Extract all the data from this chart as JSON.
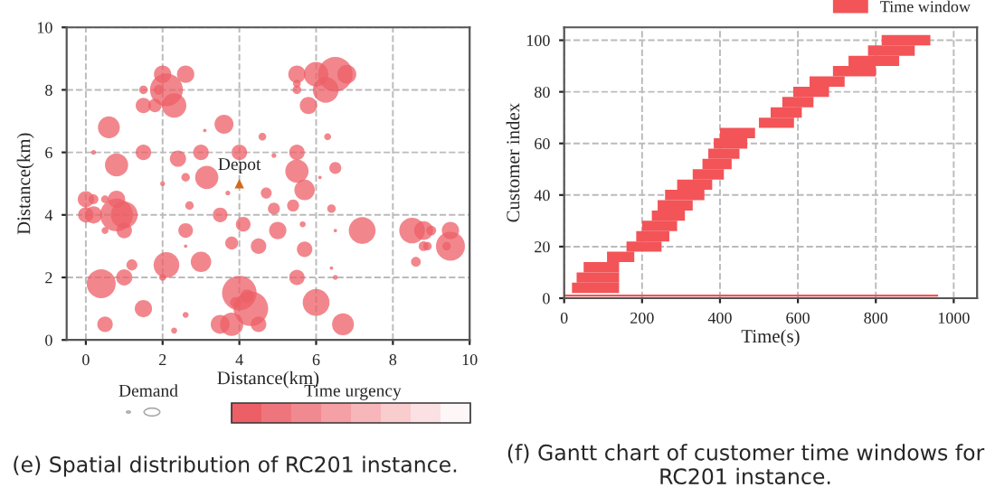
{
  "chart_data": [
    {
      "type": "bubble",
      "xlabel": "Distance(km)",
      "ylabel": "Distance(km)",
      "xlim": [
        -0.5,
        10
      ],
      "xticks": [
        0,
        2,
        4,
        6,
        8,
        10
      ],
      "ylim": [
        0,
        10
      ],
      "yticks": [
        0,
        2,
        4,
        6,
        8,
        10
      ],
      "grid": true,
      "line_style": "dashed",
      "series": [
        {
          "type": "bubble",
          "color": "#ec5f67",
          "x": [
            2.1,
            2.0,
            2.3,
            1.5,
            1.8,
            2.6,
            1.5,
            1.9,
            0.6,
            3.6,
            1.5,
            0.8,
            2.4,
            3.0,
            3.15,
            0.2,
            2.0,
            2.6,
            3.1,
            4.0,
            4.6,
            4.9,
            4.7,
            4.9,
            5.4,
            5.5,
            5.5,
            5.7,
            6.3,
            6.5,
            6.1,
            6.4,
            3.7,
            5.5,
            5.5,
            5.8,
            6.0,
            6.25,
            6.5,
            6.8,
            5.5,
            0,
            0.2,
            0.5,
            0,
            0.2,
            0.8,
            0.8,
            1.0,
            1.0,
            0.5,
            2.7,
            2.6,
            3.5,
            4.1,
            3.8,
            5.0,
            4.5,
            5.7,
            5.65,
            6.5,
            7.2,
            8.5,
            8.8,
            9.0,
            8.8,
            8.9,
            9.5,
            9.4,
            9.5,
            8.6,
            2.6,
            0.4,
            1.2,
            1.0,
            2.0,
            2.1,
            3.0,
            5.5,
            6.5,
            6.4,
            6.0,
            6.7,
            4.0,
            4.3,
            3.9,
            4.2,
            3.5,
            3.8,
            4.5,
            1.5,
            0.5,
            2.3,
            2.6
          ],
          "values": [
            8.0,
            8.5,
            7.5,
            7.5,
            7.5,
            8.5,
            8.0,
            8.0,
            6.8,
            6.9,
            6.0,
            5.6,
            5.8,
            6.0,
            5.2,
            6.0,
            5.0,
            5.2,
            6.7,
            6.0,
            6.5,
            5.9,
            4.7,
            4.2,
            4.3,
            5.4,
            6.0,
            4.8,
            6.5,
            5.5,
            5.2,
            4.2,
            4.7,
            8.5,
            8.0,
            7.5,
            8.5,
            8.0,
            8.5,
            8.5,
            8.2,
            4.5,
            4.5,
            4.5,
            4.0,
            4.0,
            4.5,
            4.0,
            4.0,
            3.5,
            3.5,
            4.3,
            3.5,
            4.0,
            3.7,
            3.1,
            3.5,
            3.0,
            2.9,
            3.7,
            3.5,
            3.5,
            3.5,
            3.5,
            3.5,
            3.0,
            3.0,
            3.5,
            3.0,
            3.0,
            2.5,
            3.0,
            1.8,
            2.4,
            2.0,
            2.0,
            2.4,
            2.5,
            2.0,
            2.0,
            2.3,
            1.2,
            0.5,
            1.5,
            1.0,
            1.2,
            1.4,
            0.5,
            0.5,
            0.5,
            1.0,
            0.5,
            0.3,
            0.8
          ],
          "sizes": [
            0.9,
            0.25,
            0.5,
            0.2,
            0.15,
            0.25,
            0.06,
            0.08,
            0.4,
            0.3,
            0.2,
            0.45,
            0.22,
            0.2,
            0.45,
            0.02,
            0.02,
            0.06,
            0.01,
            0.2,
            0.05,
            0.02,
            0.1,
            0.12,
            0.12,
            0.45,
            0.2,
            0.35,
            0.04,
            0.12,
            0.01,
            0.06,
            0.02,
            0.25,
            0.06,
            0.25,
            0.5,
            0.55,
            1.0,
            0.3,
            0.05,
            0.22,
            0.08,
            0.05,
            0.2,
            0.25,
            0.25,
            0.9,
            0.6,
            0.2,
            0.04,
            0.06,
            0.18,
            0.18,
            0.18,
            0.14,
            0.25,
            0.2,
            0.2,
            0.03,
            0.01,
            0.6,
            0.55,
            0.3,
            0.08,
            0.08,
            0.06,
            0.25,
            0.06,
            0.7,
            0.08,
            0.01,
            0.7,
            0.1,
            0.22,
            0.04,
            0.55,
            0.35,
            0.2,
            0.02,
            0.01,
            0.6,
            0.4,
            1.0,
            1.0,
            0.1,
            0.15,
            0.3,
            0.45,
            0.2,
            0.25,
            0.2,
            0.03,
            0.03
          ]
        },
        {
          "type": "scatter",
          "name": "Depot",
          "marker": "triangle",
          "color": "#d2691e",
          "x": [
            4
          ],
          "values": [
            5
          ]
        }
      ],
      "annotations": [
        "Demand",
        "Time urgency",
        "(e) Spatial distribution of RC201 instance."
      ]
    },
    {
      "type": "bar",
      "orientation": "horizontal",
      "xlabel": "Time(s)",
      "ylabel": "Customer index",
      "xlim": [
        0,
        1060
      ],
      "xticks": [
        0,
        200,
        400,
        600,
        800,
        1000
      ],
      "ylim": [
        0,
        105
      ],
      "yticks": [
        0,
        20,
        40,
        60,
        80,
        100
      ],
      "grid": true,
      "line_style": "dashed",
      "legend": "top right",
      "series": [
        {
          "color": "#f25458",
          "x": [
            1
          ],
          "base": [
            0
          ],
          "values": [
            960
          ]
        },
        {
          "name": "Time window",
          "color": "#f25458",
          "x": [
            4,
            8,
            12,
            16,
            20,
            24,
            28,
            32,
            36,
            40,
            44,
            48,
            52,
            56,
            60,
            64,
            68,
            72,
            76,
            80,
            84,
            88,
            92,
            96,
            100
          ],
          "base": [
            20,
            32,
            50,
            110,
            160,
            185,
            200,
            225,
            240,
            259,
            290,
            330,
            355,
            370,
            384,
            400,
            500,
            530,
            560,
            588,
            630,
            690,
            730,
            780,
            815
          ],
          "values": [
            121,
            109,
            91,
            70,
            90,
            85,
            90,
            85,
            90,
            101,
            90,
            80,
            75,
            80,
            86,
            90,
            90,
            80,
            80,
            92,
            90,
            110,
            130,
            120,
            125
          ]
        }
      ],
      "annotations": [
        "(f) Gantt chart of customer time windows for RC201 instance."
      ]
    }
  ]
}
